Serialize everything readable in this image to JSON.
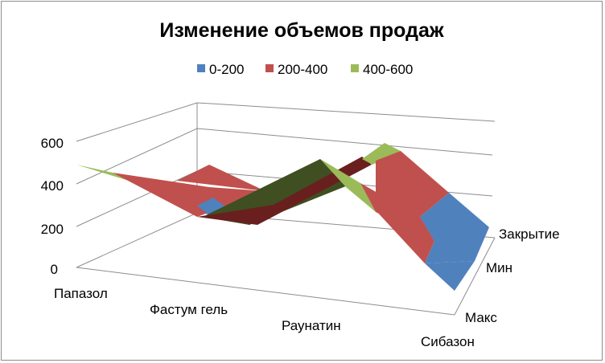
{
  "chart_data": {
    "type": "surface",
    "title": "Изменение объемов продаж",
    "categories": [
      "Папазол",
      "Фастум гель",
      "Раунатин",
      "Сибазон"
    ],
    "series_axis": [
      "Макс",
      "Мин",
      "Закрытие"
    ],
    "z_ticks": [
      "0",
      "200",
      "400",
      "600"
    ],
    "zlim": [
      0,
      600
    ],
    "legend": [
      {
        "label": "0-200",
        "color": "#4f81bd"
      },
      {
        "label": "200-400",
        "color": "#c0504d"
      },
      {
        "label": "400-600",
        "color": "#9bbb59"
      }
    ],
    "legend_position": "top",
    "grid": true
  }
}
